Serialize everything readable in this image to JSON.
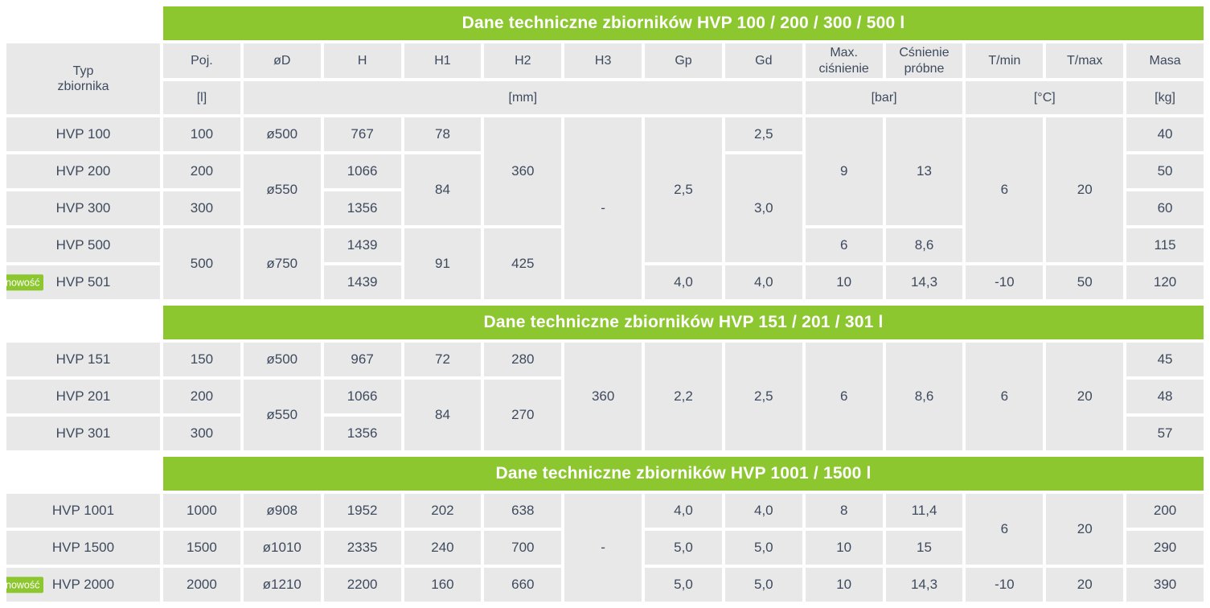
{
  "colors": {
    "accent_green": "#8cc72f",
    "cell_gray": "#e8e8e8",
    "text_dark": "#3e4a5e",
    "title_text": "#ffffff"
  },
  "header": {
    "type_label": "Typ\nzbiornika",
    "columns": [
      "Poj.",
      "øD",
      "H",
      "H1",
      "H2",
      "H3",
      "Gp",
      "Gd",
      "Max. ciśnienie",
      "Cśnienie próbne",
      "T/min",
      "T/max",
      "Masa"
    ],
    "units": [
      {
        "label": "[l]",
        "colspan": 1
      },
      {
        "label": "[mm]",
        "colspan": 7
      },
      {
        "label": "[bar]",
        "colspan": 2
      },
      {
        "label": "[°C]",
        "colspan": 2
      },
      {
        "label": "[kg]",
        "colspan": 1
      }
    ]
  },
  "sections": [
    {
      "title": "Dane techniczne zbiorników HVP 100 / 200 / 300 / 500 l",
      "rows": [
        {
          "type": "HVP 100",
          "badge": null,
          "cells": [
            {
              "v": "100"
            },
            {
              "v": "ø500"
            },
            {
              "v": "767"
            },
            {
              "v": "78"
            },
            {
              "v": "360",
              "rs": 3
            },
            {
              "v": "-",
              "rs": 5
            },
            {
              "v": "2,5",
              "rs": 4
            },
            {
              "v": "2,5"
            },
            {
              "v": "9",
              "rs": 3
            },
            {
              "v": "13",
              "rs": 3
            },
            {
              "v": "6",
              "rs": 4
            },
            {
              "v": "20",
              "rs": 4
            },
            {
              "v": "40"
            }
          ]
        },
        {
          "type": "HVP 200",
          "badge": null,
          "cells": [
            {
              "v": "200"
            },
            {
              "v": "ø550",
              "rs": 2
            },
            {
              "v": "1066"
            },
            {
              "v": "84",
              "rs": 2
            },
            {
              "v": "3,0",
              "rs": 3
            },
            {
              "v": "50"
            }
          ]
        },
        {
          "type": "HVP 300",
          "badge": null,
          "cells": [
            {
              "v": "300"
            },
            {
              "v": "1356"
            },
            {
              "v": "60"
            }
          ]
        },
        {
          "type": "HVP 500",
          "badge": null,
          "cells": [
            {
              "v": "500",
              "rs": 2
            },
            {
              "v": "ø750",
              "rs": 2
            },
            {
              "v": "1439"
            },
            {
              "v": "91",
              "rs": 2
            },
            {
              "v": "425",
              "rs": 2
            },
            {
              "v": "6"
            },
            {
              "v": "8,6"
            },
            {
              "v": "115"
            }
          ]
        },
        {
          "type": "HVP 501",
          "badge": "nowość",
          "cells": [
            {
              "v": "1439"
            },
            {
              "v": "4,0"
            },
            {
              "v": "4,0"
            },
            {
              "v": "10"
            },
            {
              "v": "14,3"
            },
            {
              "v": "-10"
            },
            {
              "v": "50"
            },
            {
              "v": "120"
            }
          ]
        }
      ]
    },
    {
      "title": "Dane techniczne zbiorników HVP 151 / 201 / 301 l",
      "rows": [
        {
          "type": "HVP 151",
          "badge": null,
          "cells": [
            {
              "v": "150"
            },
            {
              "v": "ø500"
            },
            {
              "v": "967"
            },
            {
              "v": "72"
            },
            {
              "v": "280"
            },
            {
              "v": "360",
              "rs": 3
            },
            {
              "v": "2,2",
              "rs": 3
            },
            {
              "v": "2,5",
              "rs": 3
            },
            {
              "v": "6",
              "rs": 3
            },
            {
              "v": "8,6",
              "rs": 3
            },
            {
              "v": "6",
              "rs": 3
            },
            {
              "v": "20",
              "rs": 3
            },
            {
              "v": "45"
            }
          ]
        },
        {
          "type": "HVP 201",
          "badge": null,
          "cells": [
            {
              "v": "200"
            },
            {
              "v": "ø550",
              "rs": 2
            },
            {
              "v": "1066"
            },
            {
              "v": "84",
              "rs": 2
            },
            {
              "v": "270",
              "rs": 2
            },
            {
              "v": "48"
            }
          ]
        },
        {
          "type": "HVP 301",
          "badge": null,
          "cells": [
            {
              "v": "300"
            },
            {
              "v": "1356"
            },
            {
              "v": "57"
            }
          ]
        }
      ]
    },
    {
      "title": "Dane techniczne zbiorników HVP 1001 / 1500 l",
      "rows": [
        {
          "type": "HVP 1001",
          "badge": null,
          "cells": [
            {
              "v": "1000"
            },
            {
              "v": "ø908"
            },
            {
              "v": "1952"
            },
            {
              "v": "202"
            },
            {
              "v": "638"
            },
            {
              "v": "-",
              "rs": 3
            },
            {
              "v": "4,0"
            },
            {
              "v": "4,0"
            },
            {
              "v": "8"
            },
            {
              "v": "11,4"
            },
            {
              "v": "6",
              "rs": 2
            },
            {
              "v": "20",
              "rs": 2
            },
            {
              "v": "200"
            }
          ]
        },
        {
          "type": "HVP 1500",
          "badge": null,
          "cells": [
            {
              "v": "1500"
            },
            {
              "v": "ø1010"
            },
            {
              "v": "2335"
            },
            {
              "v": "240"
            },
            {
              "v": "700"
            },
            {
              "v": "5,0"
            },
            {
              "v": "5,0"
            },
            {
              "v": "10"
            },
            {
              "v": "15"
            },
            {
              "v": "290"
            }
          ]
        },
        {
          "type": "HVP 2000",
          "badge": "nowość",
          "cells": [
            {
              "v": "2000"
            },
            {
              "v": "ø1210"
            },
            {
              "v": "2200"
            },
            {
              "v": "160"
            },
            {
              "v": "660"
            },
            {
              "v": "5,0"
            },
            {
              "v": "5,0"
            },
            {
              "v": "10"
            },
            {
              "v": "14,3"
            },
            {
              "v": "-10"
            },
            {
              "v": "20"
            },
            {
              "v": "390"
            }
          ]
        }
      ]
    }
  ]
}
